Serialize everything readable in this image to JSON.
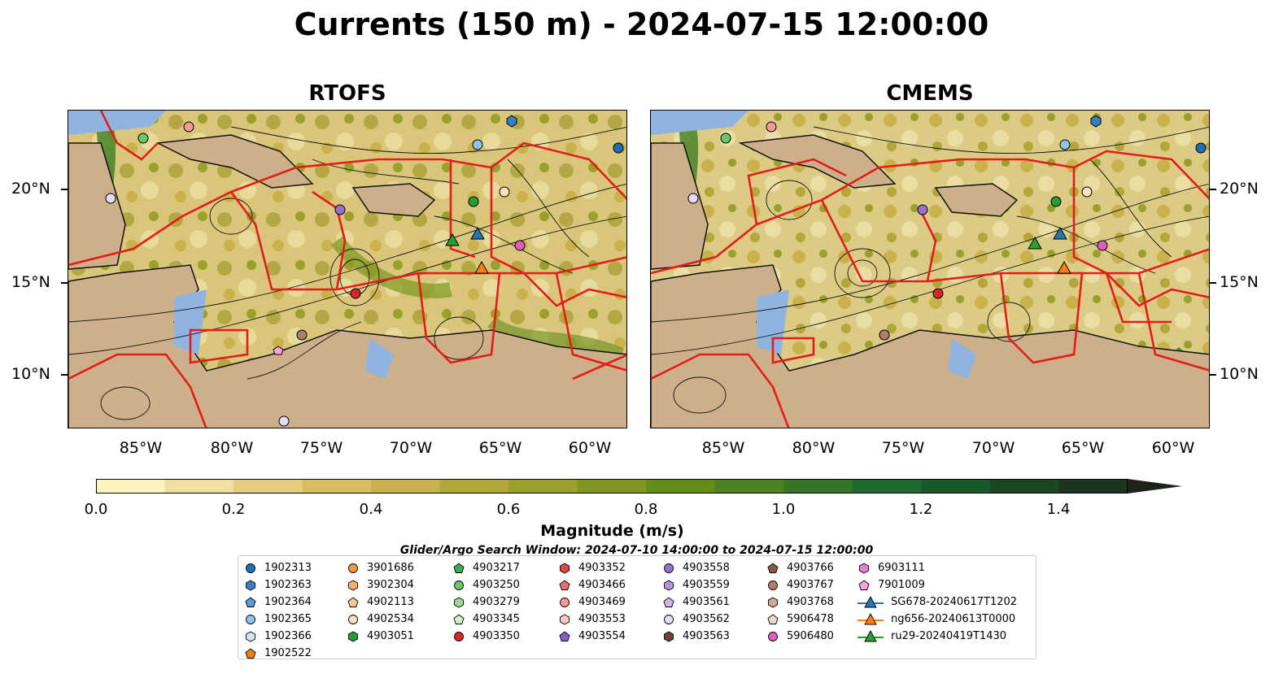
{
  "title": "Currents (150 m) - 2024-07-15 12:00:00",
  "panels": [
    {
      "title": "RTOFS"
    },
    {
      "title": "CMEMS"
    }
  ],
  "axes": {
    "lat_labels": [
      "20°N",
      "15°N",
      "10°N"
    ],
    "lon_labels": [
      "85°W",
      "80°W",
      "75°W",
      "70°W",
      "65°W",
      "60°W"
    ]
  },
  "colorbar": {
    "label": "Magnitude (m/s)",
    "ticks": [
      "0.0",
      "0.2",
      "0.4",
      "0.6",
      "0.8",
      "1.0",
      "1.2",
      "1.4"
    ],
    "range": [
      0.0,
      1.5
    ],
    "extend": "max",
    "colors": [
      "#fbf3bc",
      "#f0dfa0",
      "#e5cd80",
      "#d9bd66",
      "#c9b14c",
      "#b3a63a",
      "#9aa02a",
      "#7e9720",
      "#648c1a",
      "#4c8222",
      "#347626",
      "#1f6a2c",
      "#195828",
      "#1a4624",
      "#1c3420",
      "#1c241a"
    ]
  },
  "legend": {
    "title": "Glider/Argo Search Window: 2024-07-10 14:00:00 to 2024-07-15 12:00:00",
    "columns": [
      [
        {
          "label": "1902313",
          "marker": "circle",
          "color": "#1f6fb4"
        },
        {
          "label": "1902363",
          "marker": "hexagon",
          "color": "#3a7dc4"
        },
        {
          "label": "1902364",
          "marker": "pentagon",
          "color": "#5a9ad6"
        },
        {
          "label": "1902365",
          "marker": "circle",
          "color": "#8fc3ea"
        },
        {
          "label": "1902366",
          "marker": "hexagon",
          "color": "#cde6f7"
        },
        {
          "label": "1902522",
          "marker": "pentagon",
          "color": "#f07f11"
        }
      ],
      [
        {
          "label": "3901686",
          "marker": "circle",
          "color": "#f2973e"
        },
        {
          "label": "3902304",
          "marker": "hexagon",
          "color": "#f7b06a"
        },
        {
          "label": "4902113",
          "marker": "pentagon",
          "color": "#fac890"
        },
        {
          "label": "4902534",
          "marker": "circle",
          "color": "#fde0bc"
        },
        {
          "label": "4903051",
          "marker": "hexagon",
          "color": "#2a9a36"
        }
      ],
      [
        {
          "label": "4903217",
          "marker": "pentagon",
          "color": "#3aae48"
        },
        {
          "label": "4903250",
          "marker": "circle",
          "color": "#6cc766"
        },
        {
          "label": "4903279",
          "marker": "hexagon",
          "color": "#9ddc92"
        },
        {
          "label": "4903345",
          "marker": "pentagon",
          "color": "#d2f1c8"
        },
        {
          "label": "4903350",
          "marker": "circle",
          "color": "#d62828"
        }
      ],
      [
        {
          "label": "4903352",
          "marker": "hexagon",
          "color": "#e04444"
        },
        {
          "label": "4903466",
          "marker": "pentagon",
          "color": "#ec6a6a"
        },
        {
          "label": "4903469",
          "marker": "circle",
          "color": "#f29a96"
        },
        {
          "label": "4903553",
          "marker": "hexagon",
          "color": "#f8c8c2"
        },
        {
          "label": "4903554",
          "marker": "pentagon",
          "color": "#8a5cc4"
        }
      ],
      [
        {
          "label": "4903558",
          "marker": "circle",
          "color": "#9a70cc"
        },
        {
          "label": "4903559",
          "marker": "hexagon",
          "color": "#b394da"
        },
        {
          "label": "4903561",
          "marker": "pentagon",
          "color": "#ccb6e8"
        },
        {
          "label": "4903562",
          "marker": "circle",
          "color": "#e6daf4"
        },
        {
          "label": "4903563",
          "marker": "hexagon",
          "color": "#6e4232"
        }
      ],
      [
        {
          "label": "4903766",
          "marker": "pentagon",
          "color": "#8a5a48"
        },
        {
          "label": "4903767",
          "marker": "circle",
          "color": "#b07c6c"
        },
        {
          "label": "4903768",
          "marker": "hexagon",
          "color": "#d0a898"
        },
        {
          "label": "5906478",
          "marker": "pentagon",
          "color": "#f0d8cc"
        },
        {
          "label": "5906480",
          "marker": "circle",
          "color": "#e05cc0"
        }
      ],
      [
        {
          "label": "6903111",
          "marker": "hexagon",
          "color": "#ea7ed0"
        },
        {
          "label": "7901009",
          "marker": "pentagon",
          "color": "#f4a6e0"
        },
        {
          "label": "SG678-20240617T1202",
          "marker": "triangle-line",
          "color": "#1f77b4"
        },
        {
          "label": "ng656-20240613T0000",
          "marker": "triangle-line",
          "color": "#ff7f0e"
        },
        {
          "label": "ru29-20240419T1430",
          "marker": "triangle-line",
          "color": "#2ca02c"
        }
      ]
    ]
  }
}
